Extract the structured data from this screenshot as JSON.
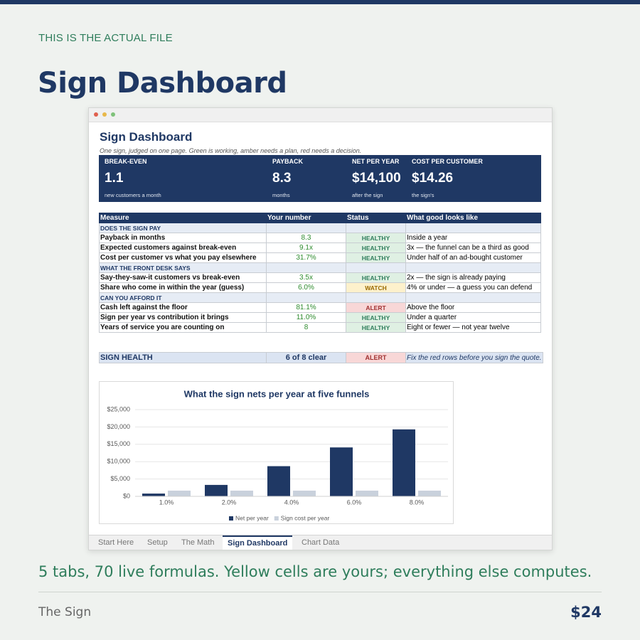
{
  "header": {
    "eyebrow": "THIS IS THE ACTUAL FILE",
    "title": "Sign Dashboard"
  },
  "sheet": {
    "title": "Sign Dashboard",
    "subtitle": "One sign, judged on one page. Green is working, amber needs a plan, red needs a decision.",
    "kpis": [
      {
        "label": "BREAK-EVEN",
        "value": "1.1",
        "note": "new customers a month"
      },
      {
        "label": "PAYBACK",
        "value": "8.3",
        "note": "months"
      },
      {
        "label": "NET PER YEAR",
        "value": "$14,100",
        "note": "after the sign"
      },
      {
        "label": "COST PER CUSTOMER",
        "value": "$14.26",
        "note": "the sign's"
      }
    ],
    "table": {
      "columns": [
        "Measure",
        "Your number",
        "Status",
        "What good looks like"
      ],
      "sections": [
        {
          "name": "DOES THE SIGN PAY",
          "rows": [
            [
              "Payback in months",
              "8.3",
              "HEALTHY",
              "Inside a year"
            ],
            [
              "Expected customers against break-even",
              "9.1x",
              "HEALTHY",
              "3x — the funnel can be a third as good"
            ],
            [
              "Cost per customer vs what you pay elsewhere",
              "31.7%",
              "HEALTHY",
              "Under half of an ad-bought customer"
            ]
          ]
        },
        {
          "name": "WHAT THE FRONT DESK SAYS",
          "rows": [
            [
              "Say-they-saw-it customers vs break-even",
              "3.5x",
              "HEALTHY",
              "2x — the sign is already paying"
            ],
            [
              "Share who come in within the year (guess)",
              "6.0%",
              "WATCH",
              "4% or under — a guess you can defend"
            ]
          ]
        },
        {
          "name": "CAN YOU AFFORD IT",
          "rows": [
            [
              "Cash left against the floor",
              "81.1%",
              "ALERT",
              "Above the floor"
            ],
            [
              "Sign per year vs contribution it brings",
              "11.0%",
              "HEALTHY",
              "Under a quarter"
            ],
            [
              "Years of service you are counting on",
              "8",
              "HEALTHY",
              "Eight or fewer — not year twelve"
            ]
          ]
        }
      ]
    },
    "summary": [
      "SIGN HEALTH",
      "6 of 8 clear",
      "ALERT",
      "Fix the red rows before you sign the quote."
    ]
  },
  "chart_data": {
    "type": "bar",
    "title": "What the sign nets per year at five funnels",
    "categories": [
      "1.0%",
      "2.0%",
      "4.0%",
      "6.0%",
      "8.0%"
    ],
    "series": [
      {
        "name": "Net per year",
        "color": "#1f3864",
        "values": [
          800,
          3300,
          8700,
          14100,
          19300
        ]
      },
      {
        "name": "Sign cost per year",
        "color": "#c9d1dc",
        "values": [
          1650,
          1650,
          1650,
          1650,
          1650
        ]
      }
    ],
    "ylim": [
      0,
      25000
    ],
    "yticks": [
      {
        "value": 0,
        "label": "$0"
      },
      {
        "value": 5000,
        "label": "$5,000"
      },
      {
        "value": 10000,
        "label": "$10,000"
      },
      {
        "value": 15000,
        "label": "$15,000"
      },
      {
        "value": 20000,
        "label": "$20,000"
      },
      {
        "value": 25000,
        "label": "$25,000"
      }
    ],
    "grid": true,
    "legend": "bottom"
  },
  "tabs": [
    "Start Here",
    "Setup",
    "The Math",
    "Sign Dashboard",
    "Chart Data"
  ],
  "footer": {
    "tagline": "5 tabs, 70 live formulas. Yellow cells are yours; everything else computes.",
    "product": "The Sign",
    "price": "$24"
  }
}
